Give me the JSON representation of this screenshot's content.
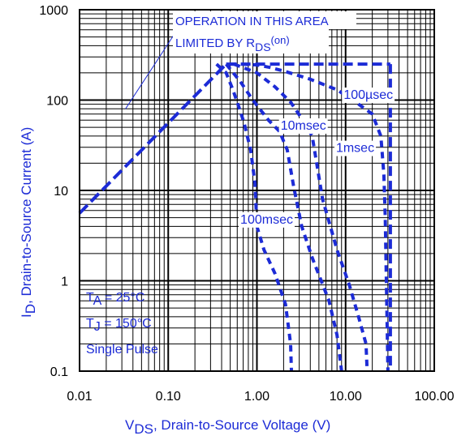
{
  "chart_data": {
    "type": "line",
    "title": "",
    "x_scale": "log",
    "y_scale": "log",
    "xlim": [
      0.01,
      100
    ],
    "ylim": [
      0.1,
      1000
    ],
    "grid": true,
    "colors": {
      "series": "#1c2bd6",
      "text": "#1c2bd6",
      "grid": "#000000"
    },
    "xlabel": {
      "main": "V",
      "sub": "DS",
      "rest": ", Drain-to-Source Voltage (V)"
    },
    "ylabel": {
      "main": "I",
      "sub": "D",
      "rest": ",  Drain-to-Source Current (A)"
    },
    "x_ticks": [
      {
        "value": 0.01,
        "label": "0.01"
      },
      {
        "value": 0.1,
        "label": "0.10"
      },
      {
        "value": 1,
        "label": "1.00"
      },
      {
        "value": 10,
        "label": "10.00"
      },
      {
        "value": 100,
        "label": "100.00"
      }
    ],
    "y_ticks": [
      {
        "value": 0.1,
        "label": "0.1"
      },
      {
        "value": 1,
        "label": "1"
      },
      {
        "value": 10,
        "label": "10"
      },
      {
        "value": 100,
        "label": "100"
      },
      {
        "value": 1000,
        "label": "1000"
      }
    ],
    "annotation": {
      "line1": "OPERATION IN THIS AREA",
      "line2_prefix": "LIMITED BY R",
      "line2_sub": "DS",
      "line2_suffix": "(on)",
      "pointer_from": [
        0.033,
        80
      ],
      "pointer_to": [
        0.14,
        700
      ]
    },
    "rds_on_limit": {
      "x": [
        0.01,
        0.45
      ],
      "y": [
        5.6,
        250
      ]
    },
    "max_current": {
      "x": [
        0.45,
        32
      ],
      "y": [
        250,
        250
      ]
    },
    "max_voltage": {
      "x": [
        32,
        32
      ],
      "y": [
        250,
        0.1
      ]
    },
    "series": [
      {
        "name": "100µsec",
        "x": [
          0.5,
          0.65,
          1.0,
          1.4,
          2.0,
          4.0,
          8.0,
          13,
          20,
          25,
          27,
          28,
          30
        ],
        "y": [
          250,
          250,
          245,
          230,
          210,
          170,
          130,
          95,
          70,
          40,
          15,
          5,
          0.1
        ]
      },
      {
        "name": "1msec",
        "x": [
          0.55,
          1.0,
          1.6,
          2.4,
          3.3,
          4.2,
          5.5,
          8.0,
          11,
          14,
          17,
          17.5
        ],
        "y": [
          250,
          200,
          140,
          95,
          60,
          40,
          8,
          2.2,
          0.9,
          0.4,
          0.2,
          0.1
        ]
      },
      {
        "name": "10msec",
        "x": [
          0.45,
          0.65,
          0.9,
          1.35,
          1.8,
          2.2,
          2.6,
          3.2,
          4.2,
          6.5,
          8.0,
          9.0
        ],
        "y": [
          250,
          160,
          100,
          60,
          45,
          28,
          11,
          4,
          1.8,
          0.6,
          0.25,
          0.1
        ]
      },
      {
        "name": "100msec",
        "x": [
          0.35,
          0.45,
          0.52,
          0.6,
          0.72,
          0.85,
          0.95,
          1.0,
          1.2,
          1.6,
          2.1,
          2.4,
          2.45
        ],
        "y": [
          250,
          200,
          140,
          95,
          55,
          28,
          12,
          4,
          2.2,
          1.2,
          0.55,
          0.2,
          0.1
        ]
      }
    ],
    "curve_labels": [
      {
        "text": "100µsec",
        "x": 9.5,
        "y": 103
      },
      {
        "text": "1msec",
        "x": 7.8,
        "y": 26.6
      },
      {
        "text": "10msec",
        "x": 1.85,
        "y": 47
      },
      {
        "text": "100msec",
        "x": 0.65,
        "y": 4.3
      }
    ],
    "conditions": {
      "ta_prefix": "T",
      "ta_sub": "A",
      "ta_suffix": " = 25°C",
      "tj_prefix": "T",
      "tj_sub": "J",
      "tj_suffix": " = 150°C",
      "pulse": "Single Pulse"
    }
  }
}
